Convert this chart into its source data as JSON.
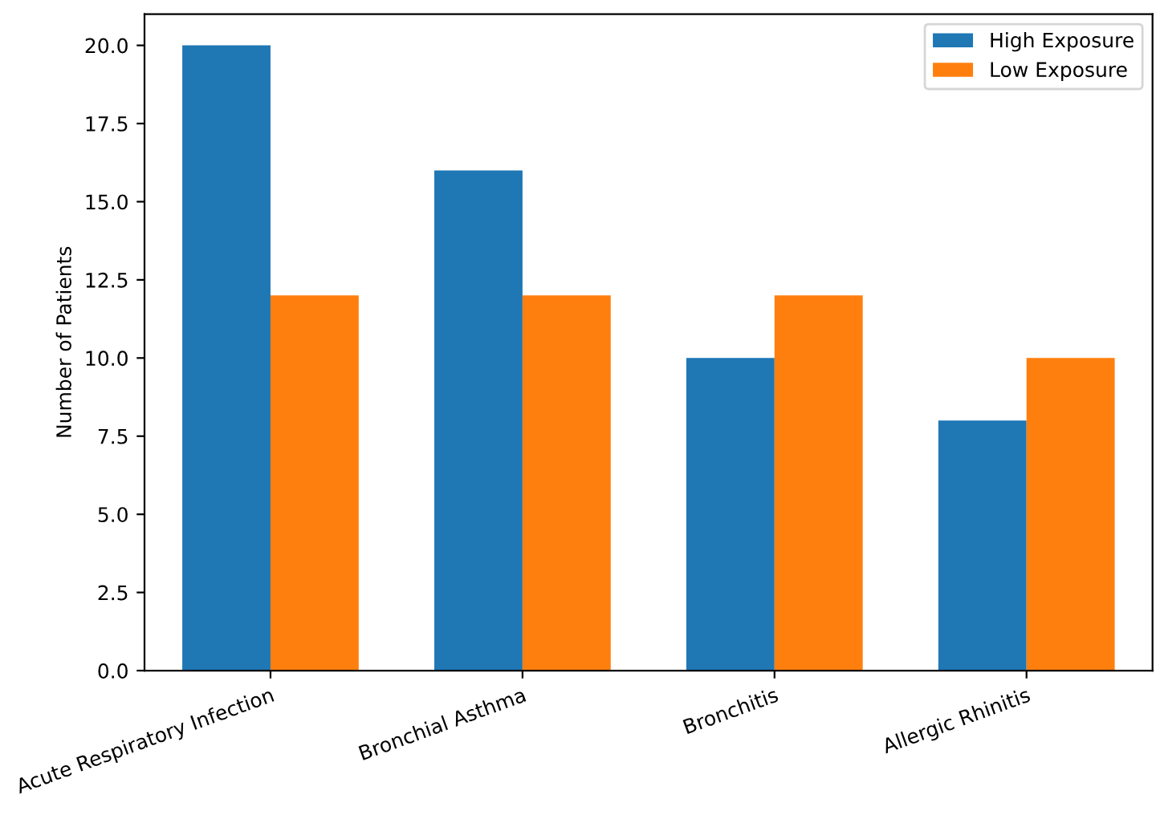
{
  "chart_data": {
    "type": "bar",
    "ylabel": "Number of Patients",
    "categories": [
      "Acute Respiratory Infection",
      "Bronchial Asthma",
      "Bronchitis",
      "Allergic Rhinitis"
    ],
    "series": [
      {
        "name": "High Exposure",
        "color": "#1f77b4",
        "values": [
          20,
          16,
          10,
          8
        ]
      },
      {
        "name": "Low Exposure",
        "color": "#ff7f0e",
        "values": [
          12,
          12,
          12,
          10
        ]
      }
    ],
    "ylim": [
      0,
      21
    ],
    "yticks": [
      {
        "value": 0,
        "label": "0.0"
      },
      {
        "value": 2.5,
        "label": "2.5"
      },
      {
        "value": 5,
        "label": "5.0"
      },
      {
        "value": 7.5,
        "label": "7.5"
      },
      {
        "value": 10,
        "label": "10.0"
      },
      {
        "value": 12.5,
        "label": "12.5"
      },
      {
        "value": 15,
        "label": "15.0"
      },
      {
        "value": 17.5,
        "label": "17.5"
      },
      {
        "value": 20,
        "label": "20.0"
      }
    ],
    "grid": false,
    "legend": "top right"
  }
}
